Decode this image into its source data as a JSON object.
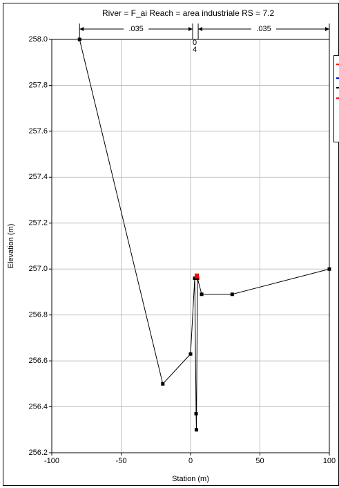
{
  "chart_data": {
    "type": "line",
    "title": "River = F_ai   Reach = area industriale     RS = 7.2",
    "x_label": "Station (m)",
    "y_label": "Elevation (m)",
    "xlim": [
      -100,
      100
    ],
    "ylim": [
      256.2,
      258.0
    ],
    "xticks": [
      -100,
      -50,
      0,
      50,
      100
    ],
    "yticks": [
      256.2,
      256.4,
      256.6,
      256.8,
      {
        "value": 257.0,
        "label": "257.0"
      },
      257.2,
      257.4,
      257.6,
      257.8,
      {
        "value": 258.0,
        "label": "258.0"
      }
    ],
    "grid": true,
    "n_breaks": [
      -80,
      1.5,
      5.5,
      100
    ],
    "n_labels": [
      ".035",
      ".035"
    ],
    "channel_n": [
      "0",
      "4"
    ],
    "series": [
      {
        "color": "#000000",
        "marker": "square",
        "x": [
          -80,
          -20,
          0,
          3,
          4,
          4.2,
          5,
          8,
          30,
          100
        ],
        "values": [
          258.0,
          256.5,
          256.63,
          256.96,
          256.37,
          256.3,
          256.96,
          256.89,
          256.89,
          257.0
        ]
      },
      {
        "color": "#ff0000",
        "marker": "none",
        "x": [
          3,
          6
        ],
        "values": [
          256.97,
          256.97
        ]
      }
    ]
  }
}
